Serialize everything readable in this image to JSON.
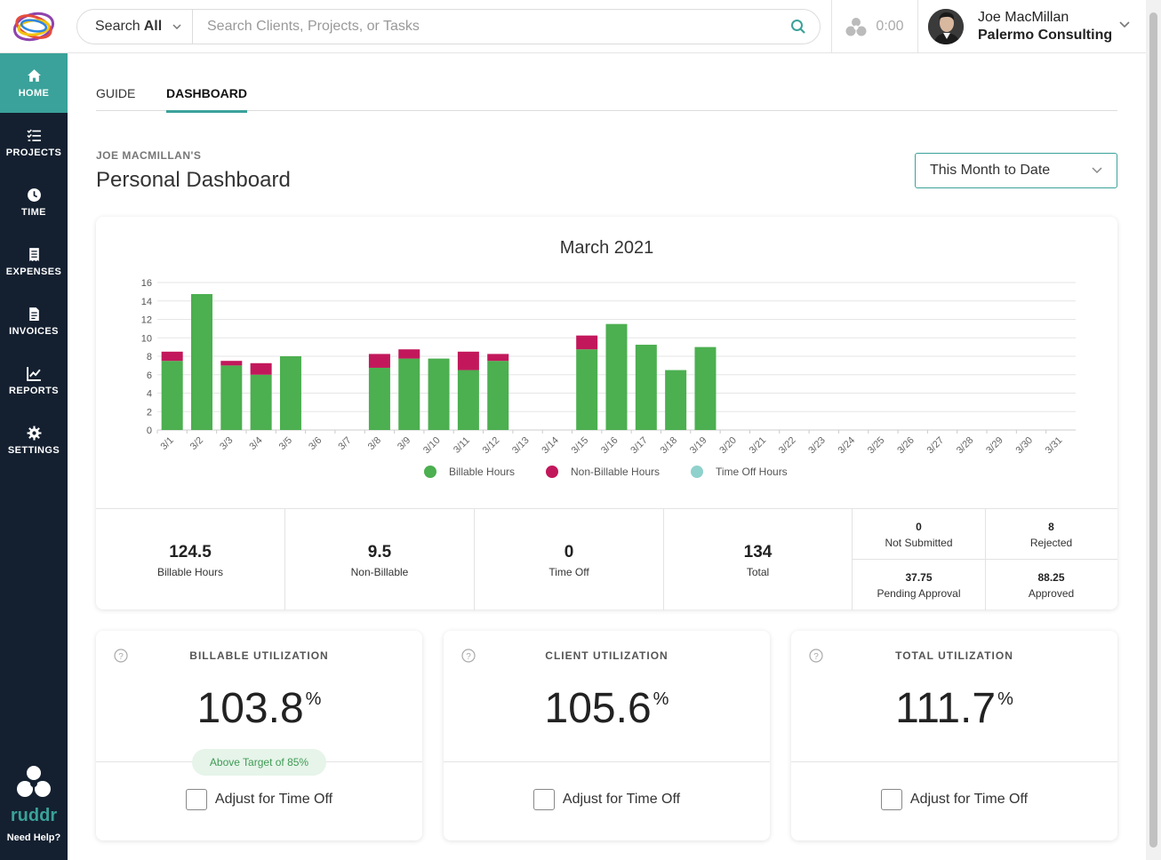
{
  "nav": {
    "items": [
      {
        "label": "HOME",
        "icon": "home-icon",
        "active": true
      },
      {
        "label": "PROJECTS",
        "icon": "list-check-icon",
        "active": false
      },
      {
        "label": "TIME",
        "icon": "clock-icon",
        "active": false
      },
      {
        "label": "EXPENSES",
        "icon": "receipt-icon",
        "active": false
      },
      {
        "label": "INVOICES",
        "icon": "document-icon",
        "active": false
      },
      {
        "label": "REPORTS",
        "icon": "chart-line-icon",
        "active": false
      },
      {
        "label": "SETTINGS",
        "icon": "gear-icon",
        "active": false
      }
    ],
    "brand": "ruddr",
    "help": "Need Help?"
  },
  "topbar": {
    "search_scope_prefix": "Search",
    "search_scope_value": "All",
    "search_placeholder": "Search Clients, Projects, or Tasks",
    "timer": "0:00",
    "user_name": "Joe MacMillan",
    "user_company": "Palermo Consulting"
  },
  "tabs": [
    {
      "label": "GUIDE",
      "active": false
    },
    {
      "label": "DASHBOARD",
      "active": true
    }
  ],
  "header": {
    "kicker": "JOE MACMILLAN'S",
    "title": "Personal Dashboard",
    "period": "This Month to Date"
  },
  "stats": {
    "billable": {
      "value": "124.5",
      "label": "Billable Hours"
    },
    "non_billable": {
      "value": "9.5",
      "label": "Non-Billable"
    },
    "time_off": {
      "value": "0",
      "label": "Time Off"
    },
    "total": {
      "value": "134",
      "label": "Total"
    },
    "not_submitted": {
      "value": "0",
      "label": "Not Submitted"
    },
    "rejected": {
      "value": "8",
      "label": "Rejected"
    },
    "pending": {
      "value": "37.75",
      "label": "Pending Approval"
    },
    "approved": {
      "value": "88.25",
      "label": "Approved"
    }
  },
  "utilization": [
    {
      "title": "BILLABLE UTILIZATION",
      "value": "103.8",
      "unit": "%",
      "badge": "Above Target of 85%",
      "adjust_label": "Adjust for Time Off"
    },
    {
      "title": "CLIENT UTILIZATION",
      "value": "105.6",
      "unit": "%",
      "adjust_label": "Adjust for Time Off"
    },
    {
      "title": "TOTAL UTILIZATION",
      "value": "111.7",
      "unit": "%",
      "adjust_label": "Adjust for Time Off"
    }
  ],
  "colors": {
    "accent": "#3aa29a",
    "billable": "#4caf50",
    "non_billable": "#c2185b",
    "time_off": "#8fd1cc"
  },
  "chart_data": {
    "type": "bar",
    "stacked": true,
    "title": "March 2021",
    "categories": [
      "3/1",
      "3/2",
      "3/3",
      "3/4",
      "3/5",
      "3/6",
      "3/7",
      "3/8",
      "3/9",
      "3/10",
      "3/11",
      "3/12",
      "3/13",
      "3/14",
      "3/15",
      "3/16",
      "3/17",
      "3/18",
      "3/19",
      "3/20",
      "3/21",
      "3/22",
      "3/23",
      "3/24",
      "3/25",
      "3/26",
      "3/27",
      "3/28",
      "3/29",
      "3/30",
      "3/31"
    ],
    "series": [
      {
        "name": "Billable Hours",
        "color": "#4caf50",
        "values": [
          7.5,
          14.75,
          7,
          6,
          8,
          0,
          0,
          6.75,
          7.75,
          7.75,
          6.5,
          7.5,
          0,
          0,
          8.75,
          11.5,
          9.25,
          6.5,
          9,
          0,
          0,
          0,
          0,
          0,
          0,
          0,
          0,
          0,
          0,
          0,
          0
        ]
      },
      {
        "name": "Non-Billable Hours",
        "color": "#c2185b",
        "values": [
          1,
          0,
          0.5,
          1.25,
          0,
          0,
          0,
          1.5,
          1,
          0,
          2,
          0.75,
          0,
          0,
          1.5,
          0,
          0,
          0,
          0,
          0,
          0,
          0,
          0,
          0,
          0,
          0,
          0,
          0,
          0,
          0,
          0
        ]
      },
      {
        "name": "Time Off Hours",
        "color": "#8fd1cc",
        "values": [
          0,
          0,
          0,
          0,
          0,
          0,
          0,
          0,
          0,
          0,
          0,
          0,
          0,
          0,
          0,
          0,
          0,
          0,
          0,
          0,
          0,
          0,
          0,
          0,
          0,
          0,
          0,
          0,
          0,
          0,
          0
        ]
      }
    ],
    "yticks": [
      0,
      2,
      4,
      6,
      8,
      10,
      12,
      14,
      16
    ],
    "ylim": [
      0,
      16
    ],
    "xlabel": "",
    "ylabel": "",
    "legend_position": "bottom"
  }
}
